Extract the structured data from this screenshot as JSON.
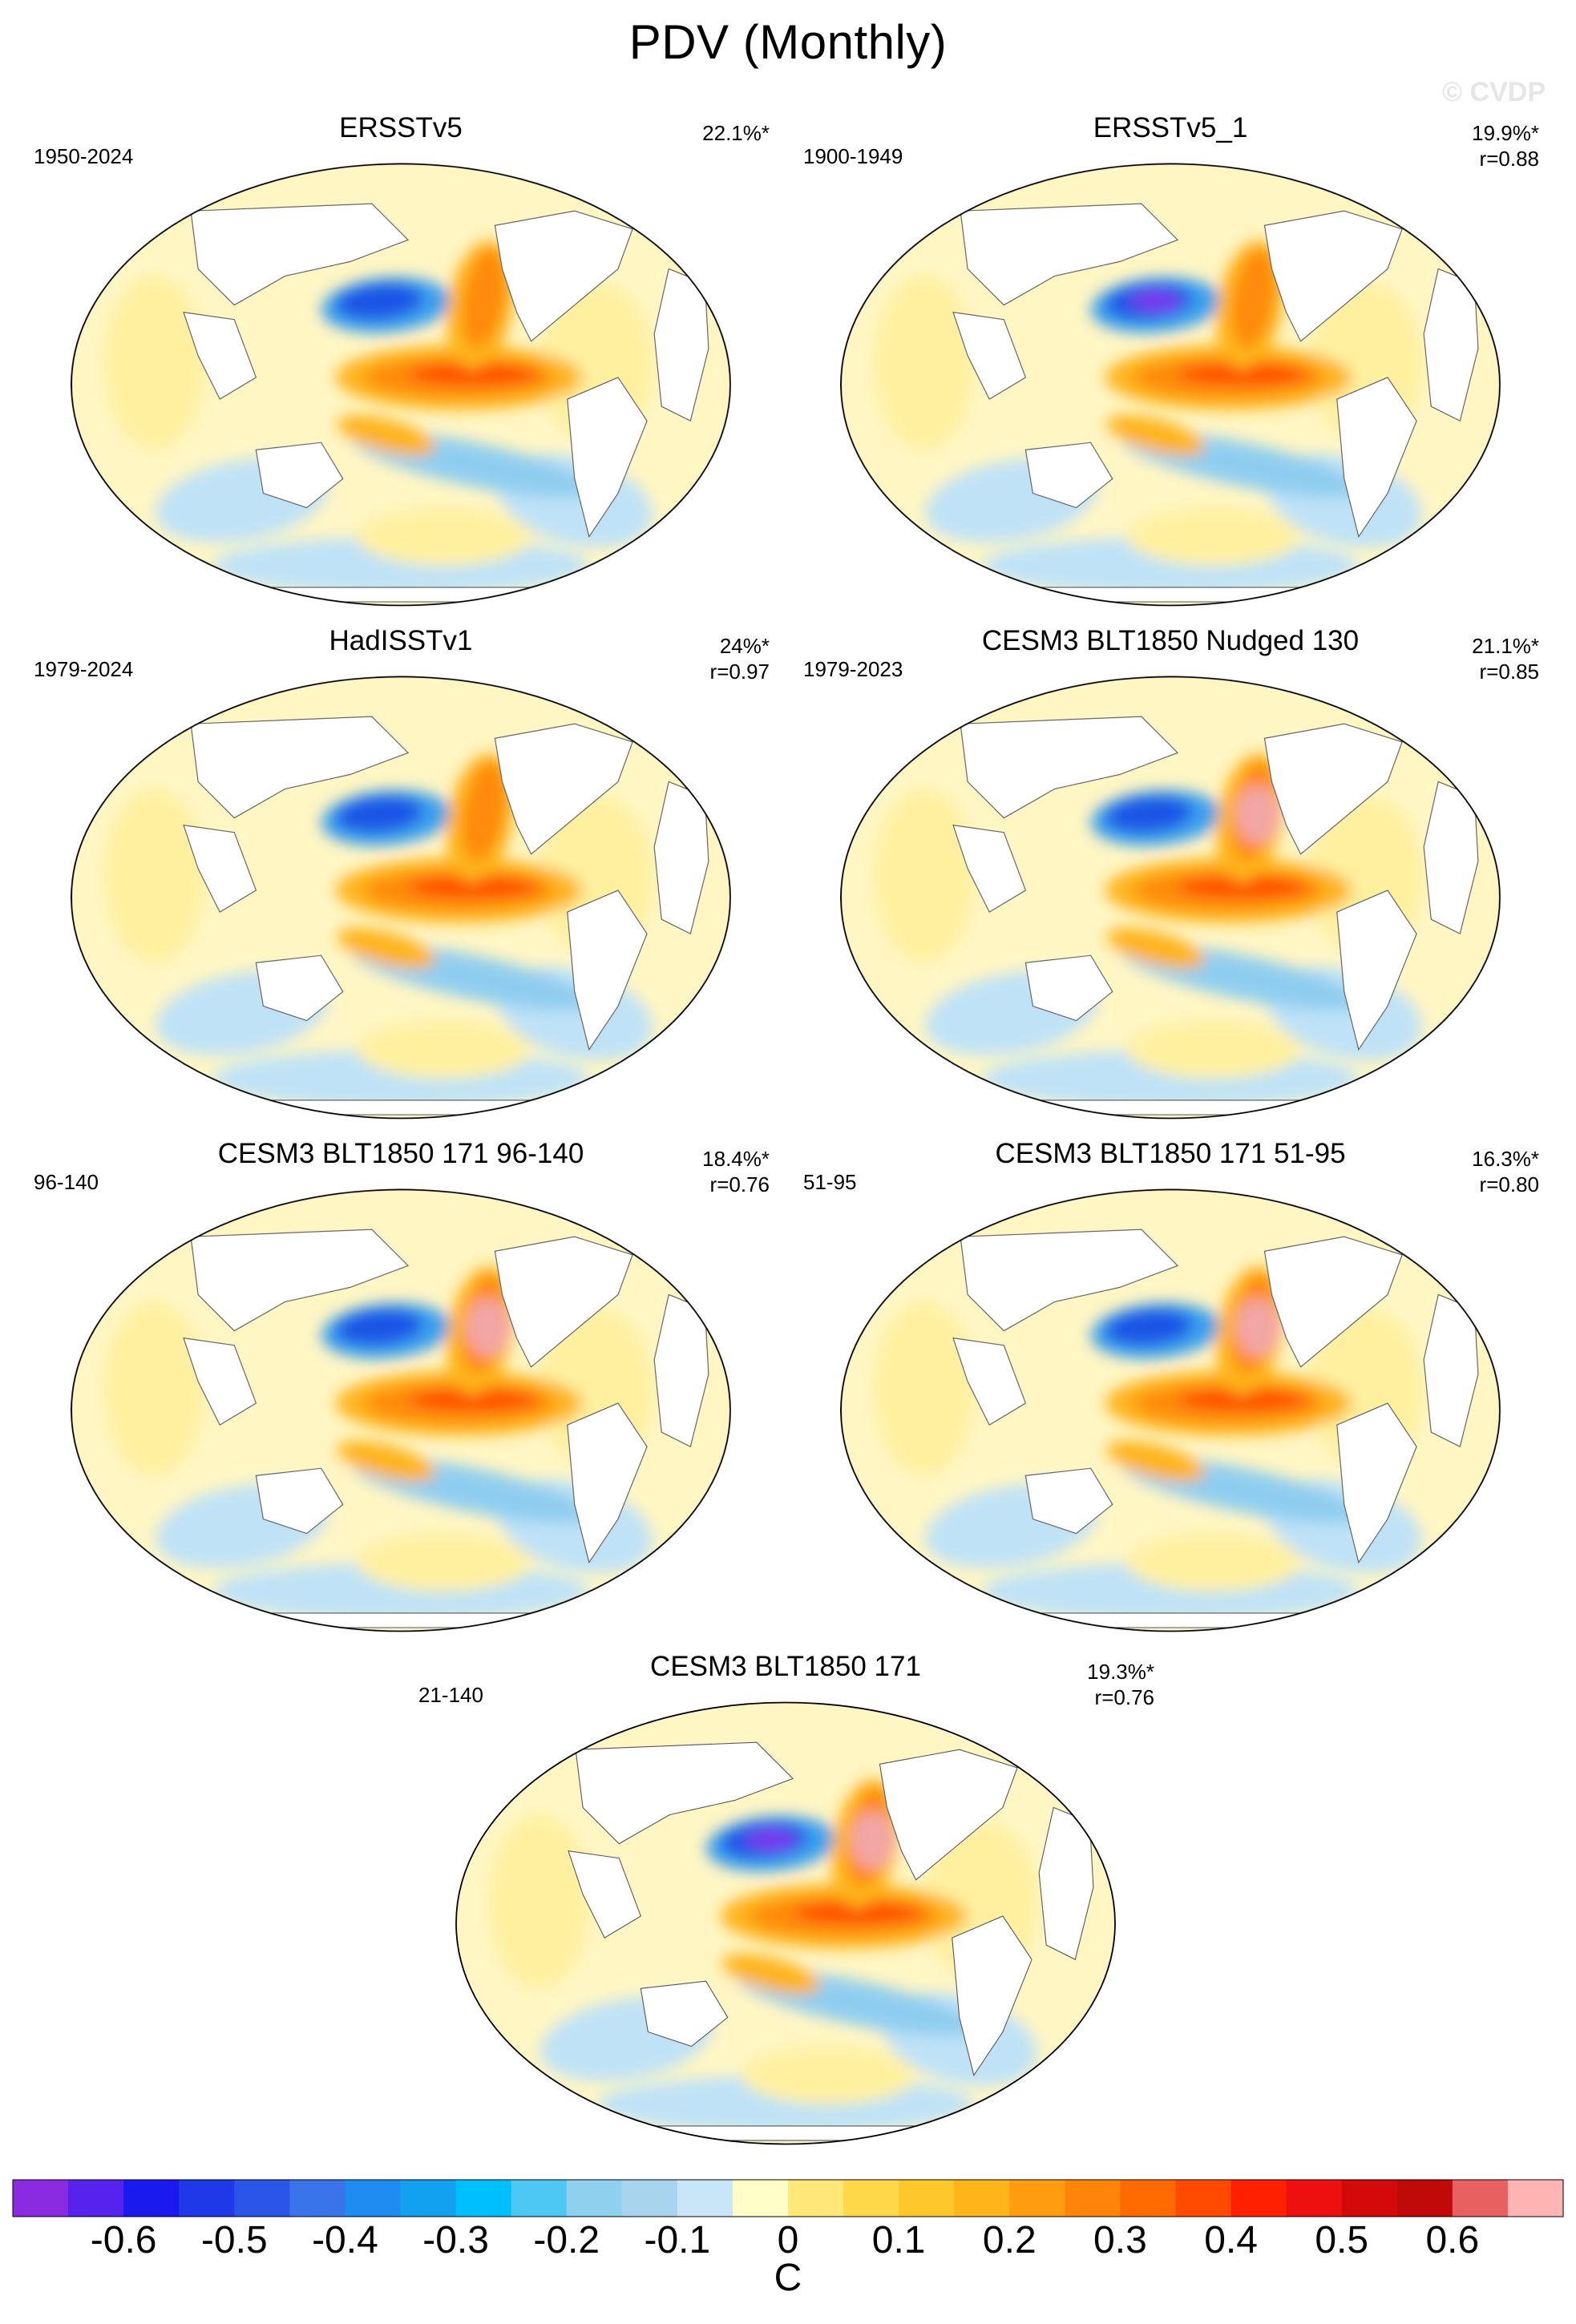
{
  "title": "PDV (Monthly)",
  "watermark": "© CVDP",
  "units": "C",
  "panels": [
    {
      "title": "ERSSTv5",
      "period": "1950-2024",
      "pct": "22.1%*",
      "corr": ""
    },
    {
      "title": "ERSSTv5_1",
      "period": "1900-1949",
      "pct": "19.9%*",
      "corr": "r=0.88"
    },
    {
      "title": "HadISSTv1",
      "period": "1979-2024",
      "pct": "24%*",
      "corr": "r=0.97"
    },
    {
      "title": "CESM3 BLT1850 Nudged 130",
      "period": "1979-2023",
      "pct": "21.1%*",
      "corr": "r=0.85"
    },
    {
      "title": "CESM3 BLT1850 171 96-140",
      "period": "96-140",
      "pct": "18.4%*",
      "corr": "r=0.76"
    },
    {
      "title": "CESM3 BLT1850 171 51-95",
      "period": "51-95",
      "pct": "16.3%*",
      "corr": "r=0.80"
    },
    {
      "title": "CESM3 BLT1850 171",
      "period": "21-140",
      "pct": "19.3%*",
      "corr": "r=0.76"
    }
  ],
  "colorbar": {
    "labels": [
      "-0.6",
      "-0.5",
      "-0.4",
      "-0.3",
      "-0.2",
      "-0.1",
      "0",
      "0.1",
      "0.2",
      "0.3",
      "0.4",
      "0.5",
      "0.6"
    ],
    "colors": [
      "#8a2be2",
      "#5522ee",
      "#1a1aee",
      "#1f38e8",
      "#2a55e6",
      "#3a74ea",
      "#1e8cf0",
      "#12a0f0",
      "#00bfff",
      "#4dc8f5",
      "#8fd0ef",
      "#a8d4ee",
      "#c8e6f7",
      "#fffec8",
      "#ffe878",
      "#ffd84a",
      "#ffc82a",
      "#ffb41a",
      "#ff9c10",
      "#ff840a",
      "#ff6a00",
      "#ff4a00",
      "#ff2000",
      "#ee1010",
      "#d40a0a",
      "#c00a0a",
      "#e86060",
      "#ffb4b4"
    ]
  }
}
